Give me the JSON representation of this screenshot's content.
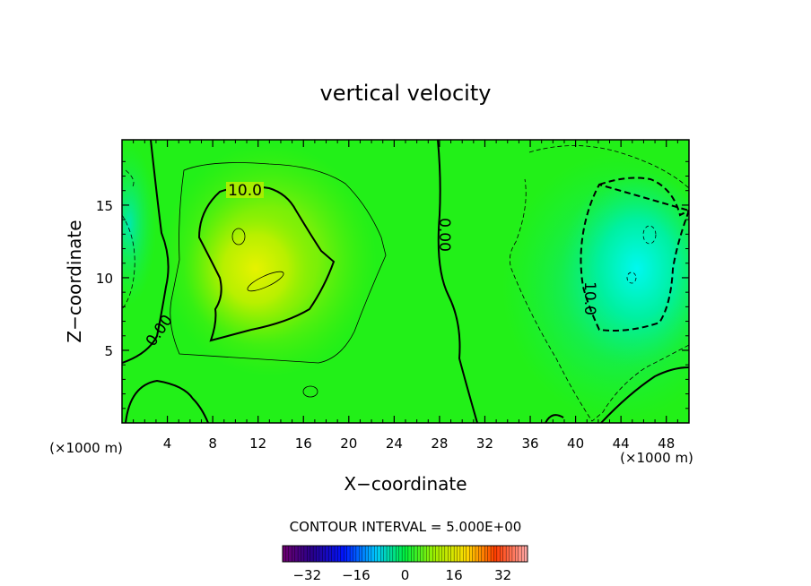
{
  "chart_data": {
    "type": "heatmap",
    "title": "vertical velocity",
    "xlabel": "X−coordinate",
    "ylabel": "Z−coordinate",
    "xunit_left": "(×1000 m)",
    "xunit_right": "(×1000 m)",
    "xlim": [
      0,
      50
    ],
    "ylim": [
      0,
      19.5
    ],
    "xticks": [
      4,
      8,
      12,
      16,
      20,
      24,
      28,
      32,
      36,
      40,
      44,
      48
    ],
    "yticks": [
      5,
      10,
      15
    ],
    "contour_interval_text": "CONTOUR INTERVAL = 5.000E+00",
    "contour_labels": [
      "10.0",
      "0.00",
      "0.00",
      "10.0"
    ],
    "colorbar": {
      "ticks": [
        "−32",
        "−16",
        "0",
        "16",
        "32"
      ],
      "tick_values": [
        -32,
        -16,
        0,
        16,
        32
      ],
      "range": [
        -40,
        40
      ]
    },
    "field_features": [
      {
        "kind": "max",
        "x": 11,
        "z": 11,
        "value": 17
      },
      {
        "kind": "min",
        "x": 46,
        "z": 11,
        "value": -16
      }
    ]
  }
}
